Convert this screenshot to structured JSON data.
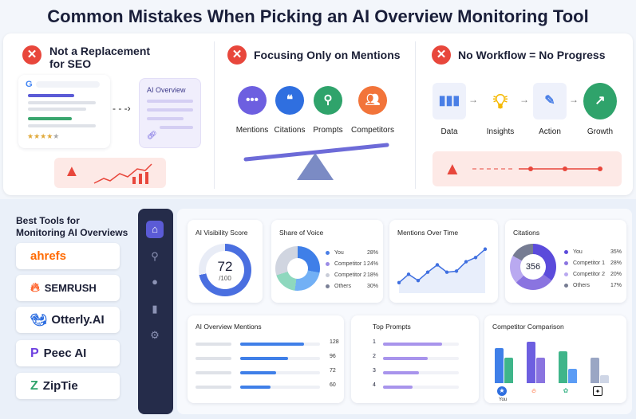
{
  "title": "Common Mistakes When Picking an AI Overview Monitoring Tool",
  "mistakes": [
    {
      "heading": "Not a Replacement for SEO",
      "heading_l1": "Not a Replacement",
      "heading_l2": "for SEO",
      "ai_overview_label": "AI Overview",
      "stars": 4,
      "stars_max": 5
    },
    {
      "heading": "Focusing Only on Mentions",
      "items": [
        "Mentions",
        "Citations",
        "Prompts",
        "Competitors"
      ]
    },
    {
      "heading": "No Workflow = No Progress",
      "steps": [
        "Data",
        "Insights",
        "Action",
        "Growth"
      ]
    }
  ],
  "tools": {
    "title": "Best Tools for Monitoring AI Overviews",
    "items": [
      "ahrefs",
      "SEMRUSH",
      "Otterly.AI",
      "Peec AI",
      "ZipTie"
    ]
  },
  "sidebar": {
    "icons": [
      "home-icon",
      "search-icon",
      "chat-icon",
      "bar-chart-icon",
      "gear-icon"
    ]
  },
  "dashboard": {
    "visibility": {
      "title": "AI Visibility Score",
      "score": "72",
      "max": "/100",
      "value": 72
    },
    "share_of_voice": {
      "title": "Share of Voice",
      "legend": [
        {
          "label": "You",
          "value": "28%",
          "pct": 28,
          "color": "#4a7fe6"
        },
        {
          "label": "Competitor 1",
          "value": "24%",
          "pct": 24,
          "color": "#9b8ce6"
        },
        {
          "label": "Competitor 2",
          "value": "18%",
          "pct": 18,
          "color": "#c9cdd8"
        },
        {
          "label": "Others",
          "value": "30%",
          "pct": 30,
          "color": "#7a8096"
        }
      ],
      "donut_colors": [
        "#3f7fe8",
        "#72b0f5",
        "#8ed8be",
        "#d0d5e0",
        "#b79ff0"
      ]
    },
    "mentions_over_time": {
      "title": "Mentions Over Time",
      "values": [
        10,
        18,
        12,
        20,
        27,
        20,
        21,
        30,
        34,
        42
      ]
    },
    "citations": {
      "title": "Citations",
      "total": "356",
      "legend": [
        {
          "label": "You",
          "value": "35%",
          "pct": 35,
          "color": "#5b4bdb"
        },
        {
          "label": "Competitor 1",
          "value": "28%",
          "pct": 28,
          "color": "#8a74e0"
        },
        {
          "label": "Competitor 2",
          "value": "20%",
          "pct": 20,
          "color": "#b9a9f0"
        },
        {
          "label": "Others",
          "value": "17%",
          "pct": 17,
          "color": "#767c92"
        }
      ]
    },
    "ai_overview_mentions": {
      "title": "AI Overview Mentions",
      "rows": [
        {
          "value": "128",
          "n": 128
        },
        {
          "value": "96",
          "n": 96
        },
        {
          "value": "72",
          "n": 72
        },
        {
          "value": "60",
          "n": 60
        }
      ]
    },
    "top_prompts": {
      "title": "Top Prompts",
      "rows": [
        {
          "rank": "1",
          "pct": 78
        },
        {
          "rank": "2",
          "pct": 59
        },
        {
          "rank": "3",
          "pct": 47
        },
        {
          "rank": "4",
          "pct": 39
        }
      ]
    },
    "competitor_comparison": {
      "title": "Competitor Comparison",
      "you_label": "You",
      "groups": [
        {
          "icon": "star-badge-icon",
          "a": 85,
          "b": 62,
          "ca": "#3f7fe8",
          "cb": "#3fb58a"
        },
        {
          "icon": "semrush-icon",
          "a": 100,
          "b": 62,
          "ca": "#6d5fe0",
          "cb": "#8a74e0"
        },
        {
          "icon": "openai-icon",
          "a": 77,
          "b": 35,
          "ca": "#3fb58a",
          "cb": "#5b9cf5"
        },
        {
          "icon": "gemini-icon",
          "a": 62,
          "b": 20,
          "ca": "#9aa6c4",
          "cb": "#cfd6e6"
        }
      ]
    }
  }
}
